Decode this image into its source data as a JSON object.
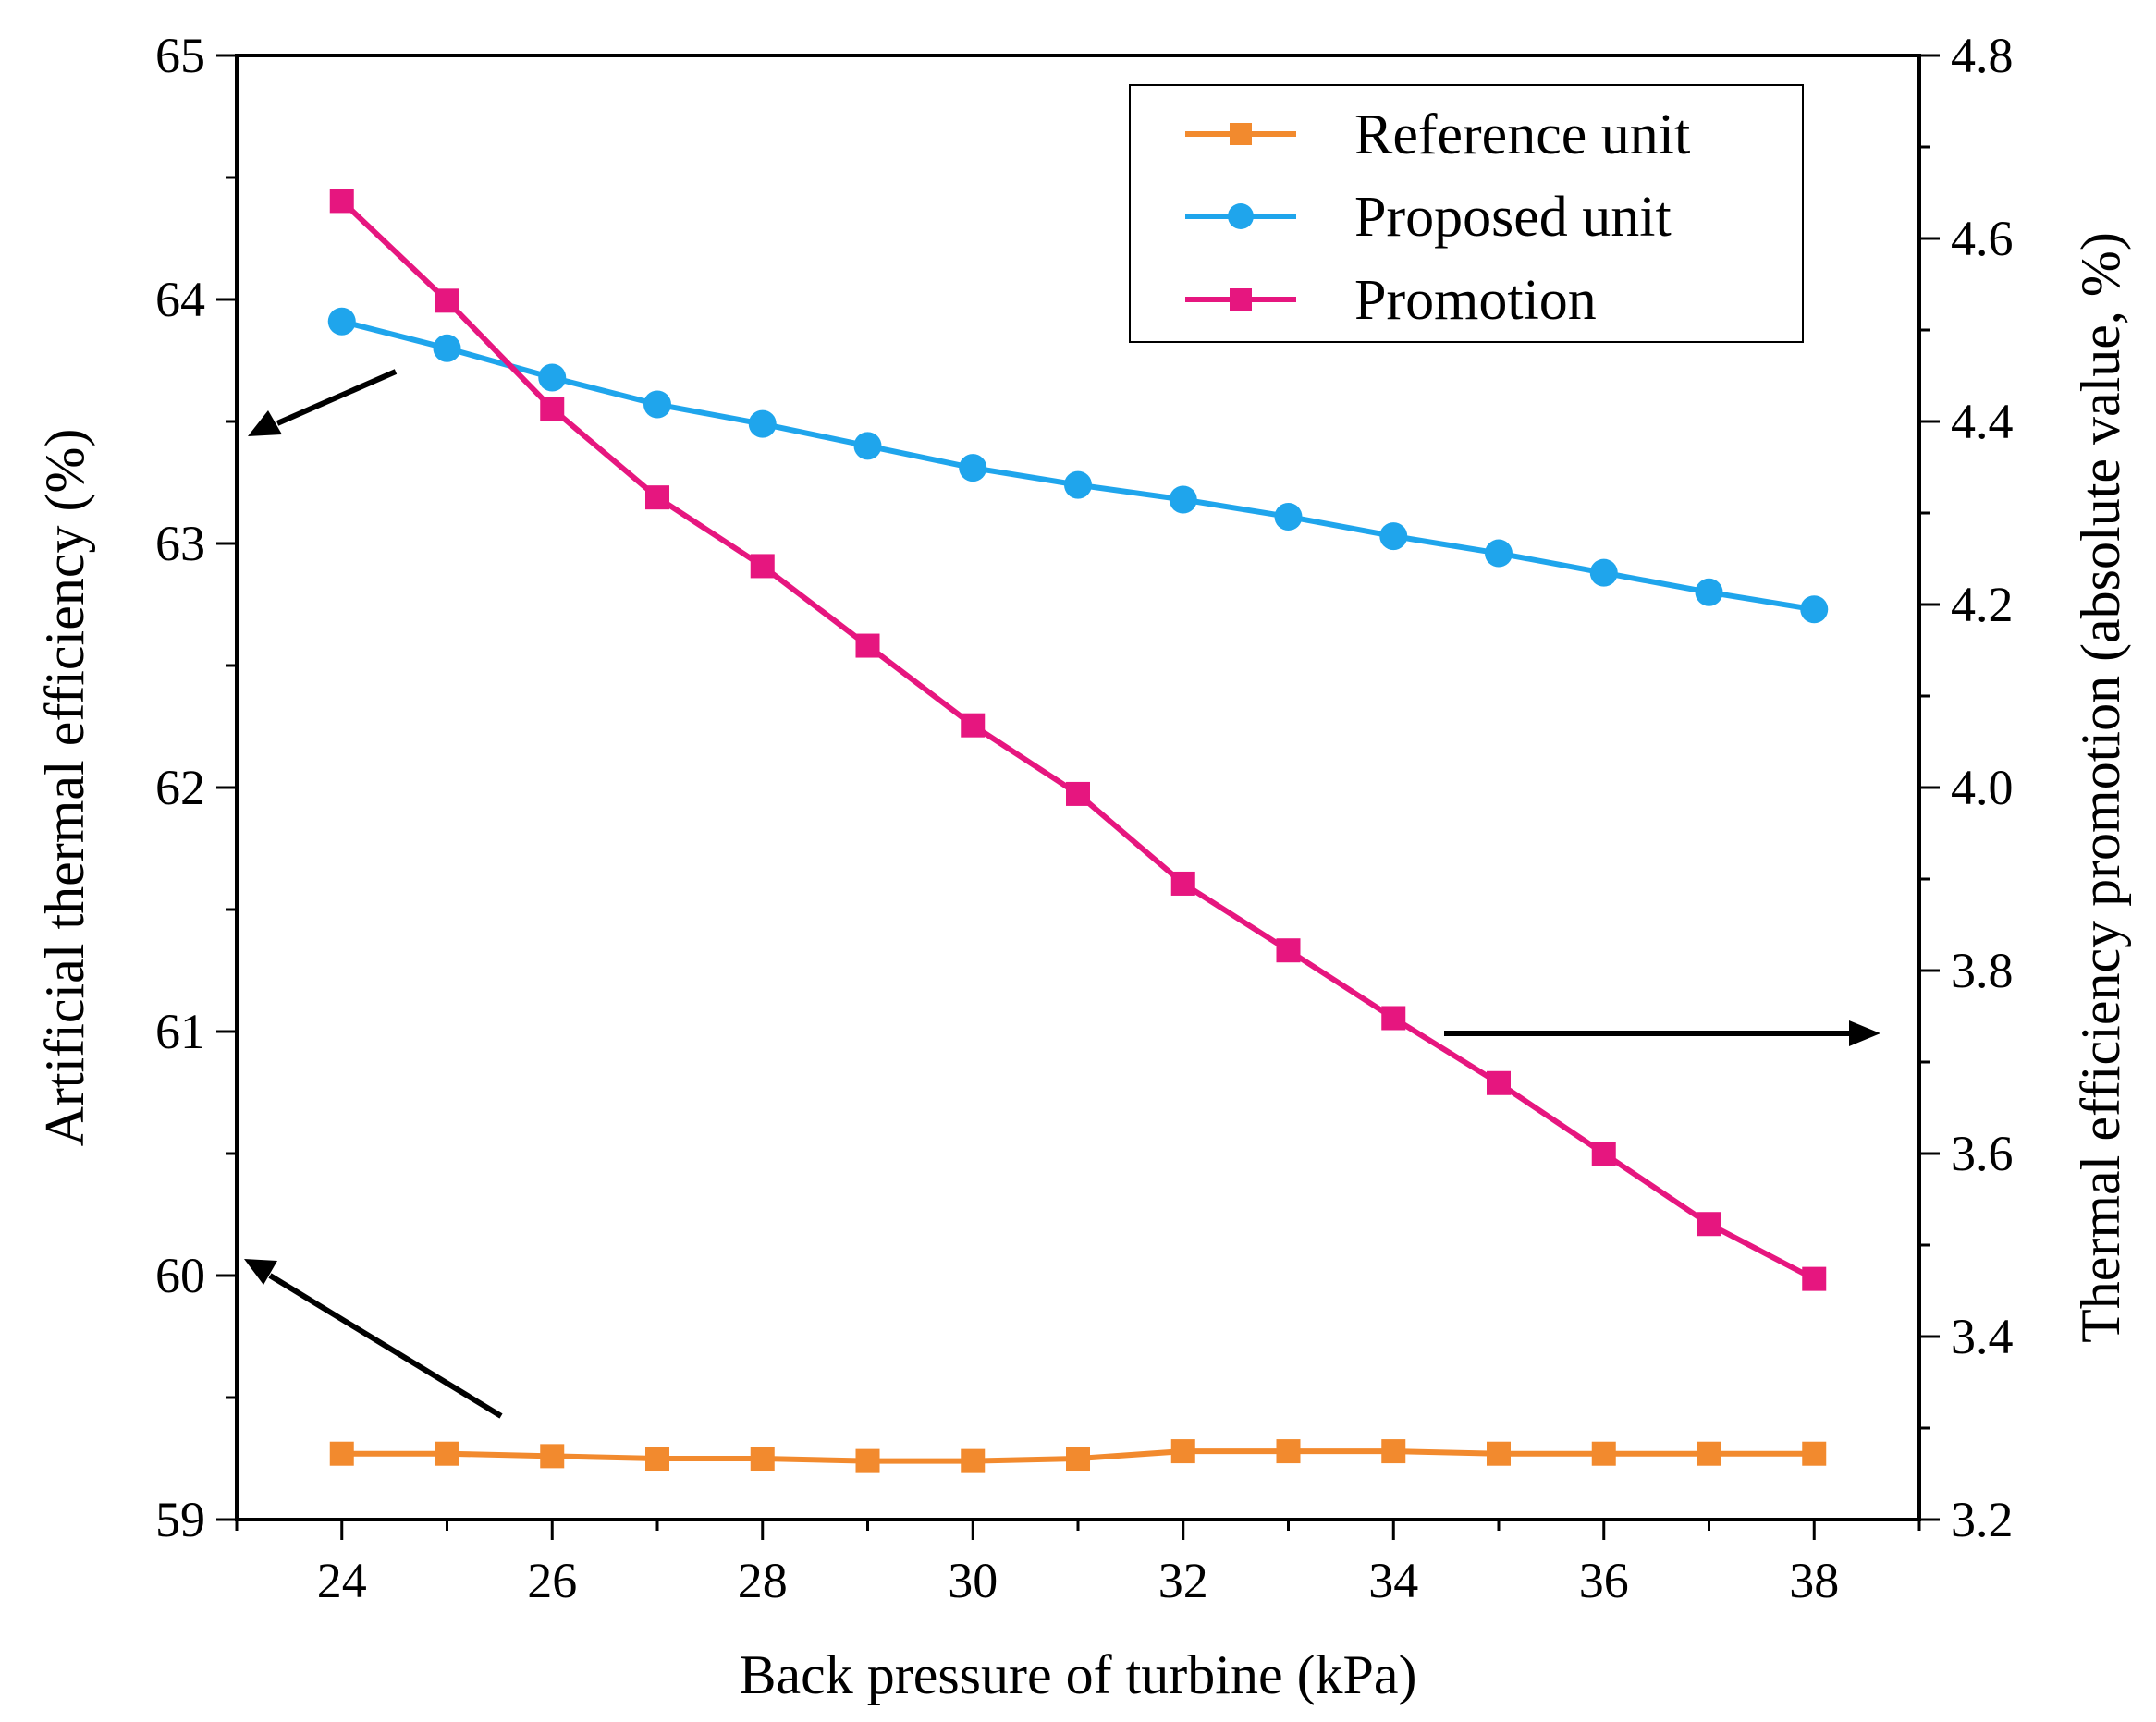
{
  "chart_data": {
    "type": "line",
    "xlabel": "Back pressure of turbine (kPa)",
    "ylabel_left": "Artificial thermal efficiency (%)",
    "ylabel_right": "Thermal efficiency promotion (absolute value, %)",
    "xlim": [
      23,
      39
    ],
    "ylim_left": [
      59,
      65
    ],
    "ylim_right": [
      3.2,
      4.8
    ],
    "x_ticks": [
      24,
      26,
      28,
      30,
      32,
      34,
      36,
      38
    ],
    "y_left_ticks": [
      59,
      60,
      61,
      62,
      63,
      64,
      65
    ],
    "y_right_ticks": [
      3.2,
      3.4,
      3.6,
      3.8,
      4.0,
      4.2,
      4.4,
      4.6,
      4.8
    ],
    "x_tick_labels": [
      "24",
      "26",
      "28",
      "30",
      "32",
      "34",
      "36",
      "38"
    ],
    "y_left_tick_labels": [
      "59",
      "60",
      "61",
      "62",
      "63",
      "64",
      "65"
    ],
    "y_right_tick_labels": [
      "3.2",
      "3.4",
      "3.6",
      "3.8",
      "4.0",
      "4.2",
      "4.4",
      "4.6",
      "4.8"
    ],
    "x": [
      24,
      25,
      26,
      27,
      28,
      29,
      30,
      31,
      32,
      33,
      34,
      35,
      36,
      37,
      38
    ],
    "grid": false,
    "legend_position": "top-right",
    "series": [
      {
        "name": "Reference unit",
        "axis": "left",
        "marker": "square",
        "color": "#F28A2E",
        "values": [
          59.27,
          59.27,
          59.26,
          59.25,
          59.25,
          59.24,
          59.24,
          59.25,
          59.28,
          59.28,
          59.28,
          59.27,
          59.27,
          59.27,
          59.27
        ]
      },
      {
        "name": "Proposed unit",
        "axis": "left",
        "marker": "circle",
        "color": "#1FA5EC",
        "values": [
          63.91,
          63.8,
          63.68,
          63.57,
          63.49,
          63.4,
          63.31,
          63.24,
          63.18,
          63.11,
          63.03,
          62.96,
          62.88,
          62.8,
          62.73
        ]
      },
      {
        "name": "Promotion",
        "axis": "right",
        "marker": "square",
        "color": "#E6167F",
        "values": [
          4.641,
          4.532,
          4.414,
          4.317,
          4.242,
          4.155,
          4.068,
          3.993,
          3.895,
          3.822,
          3.748,
          3.677,
          3.6,
          3.523,
          3.463
        ]
      }
    ]
  }
}
